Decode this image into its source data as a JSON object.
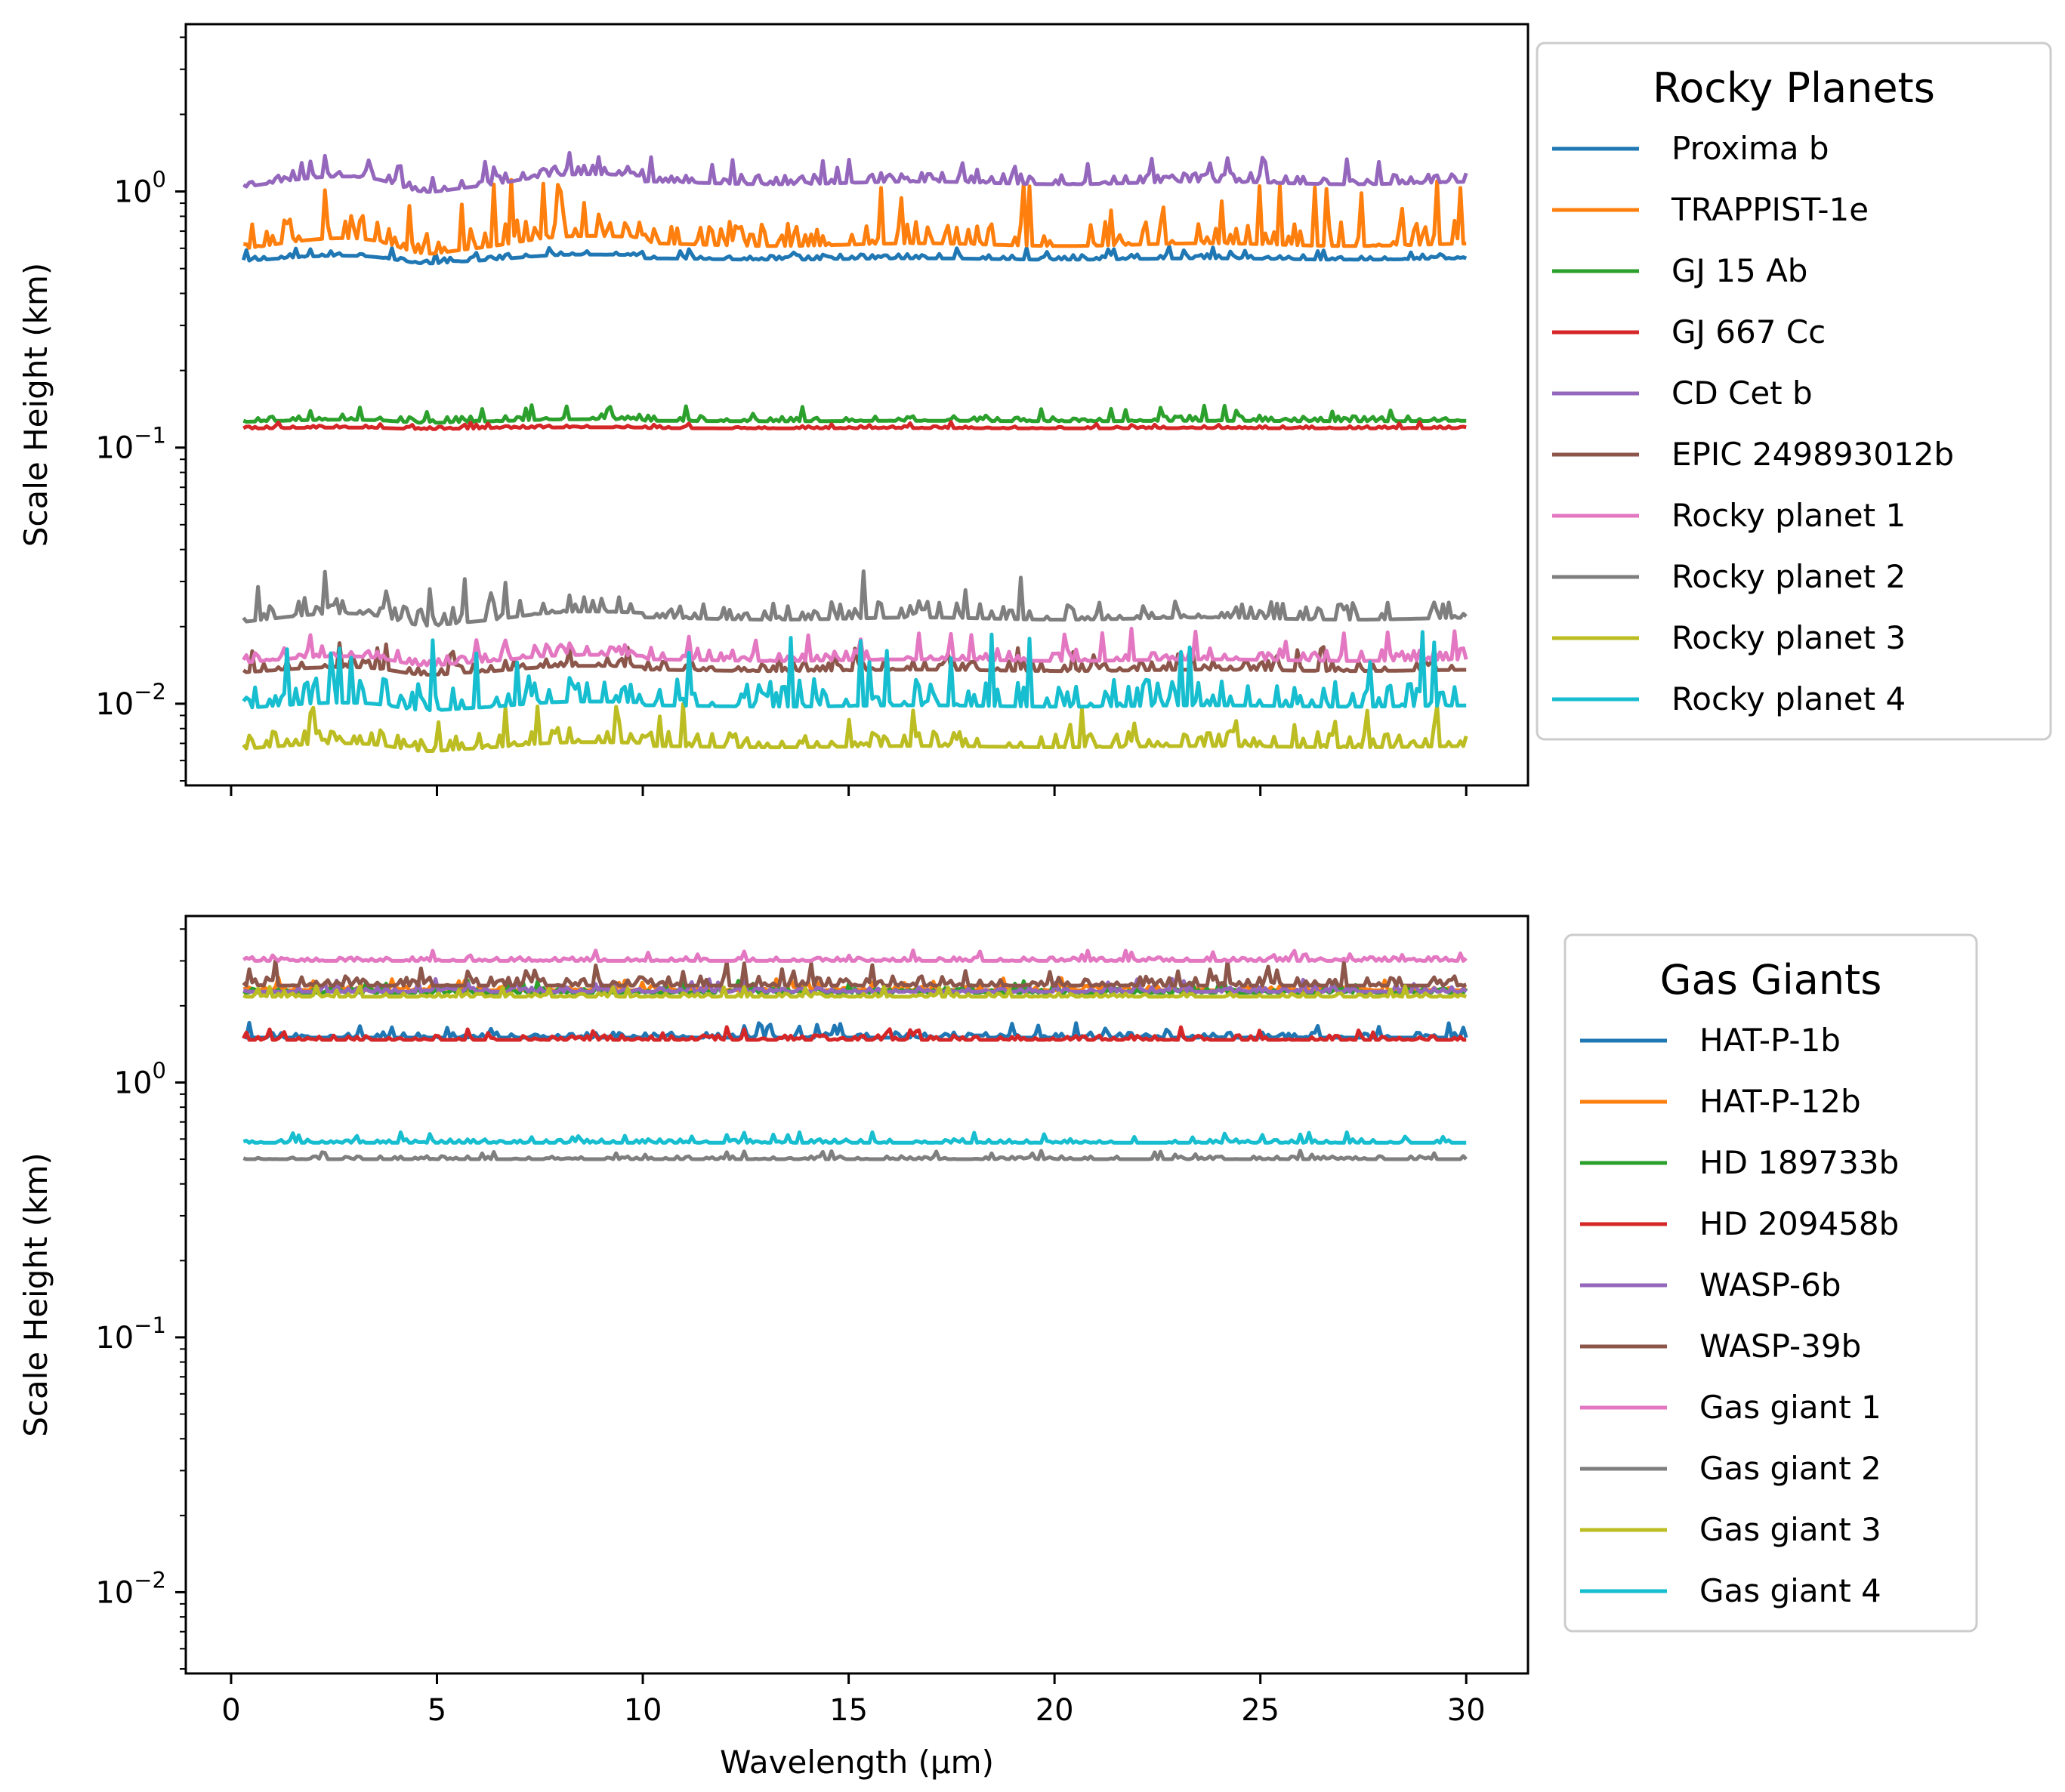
{
  "chart_data": [
    {
      "type": "line",
      "panel": "top",
      "yscale": "log",
      "ylabel": "Scale Height (km)",
      "xlabel": "",
      "xlim": [
        -1.1,
        31.5
      ],
      "ylim": [
        0.0048,
        4.5
      ],
      "xticks": [
        0,
        5,
        10,
        15,
        20,
        25,
        30
      ],
      "show_xtick_labels": false,
      "yticks": [
        {
          "value": 1,
          "base": "10",
          "exp": "0"
        },
        {
          "value": 0.1,
          "base": "10",
          "exp": "−1"
        },
        {
          "value": 0.01,
          "base": "10",
          "exp": "−2"
        }
      ],
      "legend": {
        "title": "Rocky Planets",
        "placement": "outside right"
      },
      "x_range": [
        0.3,
        30.0
      ],
      "series": [
        {
          "name": "Proxima b",
          "color": "#1f77b4",
          "baseline": 0.545,
          "noise": 0.06,
          "bump": 0.05
        },
        {
          "name": "TRAPPIST-1e",
          "color": "#ff7f0e",
          "baseline": 0.62,
          "noise": 0.3,
          "bump": 0.1
        },
        {
          "name": "GJ 15 Ab",
          "color": "#2ca02c",
          "baseline": 0.127,
          "noise": 0.07,
          "bump": 0.02
        },
        {
          "name": "GJ 667 Cc",
          "color": "#d62728",
          "baseline": 0.119,
          "noise": 0.03,
          "bump": 0.01
        },
        {
          "name": "CD Cet b",
          "color": "#9467bd",
          "baseline": 1.08,
          "noise": 0.12,
          "bump": 0.1
        },
        {
          "name": "EPIC 249893012b",
          "color": "#8c564b",
          "baseline": 0.0135,
          "noise": 0.12,
          "bump": 0.05
        },
        {
          "name": "Rocky planet 1",
          "color": "#e377c2",
          "baseline": 0.0148,
          "noise": 0.15,
          "bump": 0.06
        },
        {
          "name": "Rocky planet 2",
          "color": "#7f7f7f",
          "baseline": 0.0215,
          "noise": 0.22,
          "bump": 0.08
        },
        {
          "name": "Rocky planet 3",
          "color": "#bcbd22",
          "baseline": 0.0068,
          "noise": 0.2,
          "bump": 0.05
        },
        {
          "name": "Rocky planet 4",
          "color": "#17becf",
          "baseline": 0.0098,
          "noise": 0.35,
          "bump": 0.05
        }
      ]
    },
    {
      "type": "line",
      "panel": "bottom",
      "yscale": "log",
      "ylabel": "Scale Height (km)",
      "xlabel": "Wavelength (μm)",
      "xlim": [
        -1.1,
        31.5
      ],
      "ylim": [
        0.0048,
        4.5
      ],
      "xticks": [
        0,
        5,
        10,
        15,
        20,
        25,
        30
      ],
      "show_xtick_labels": true,
      "yticks": [
        {
          "value": 1,
          "base": "10",
          "exp": "0"
        },
        {
          "value": 0.1,
          "base": "10",
          "exp": "−1"
        },
        {
          "value": 0.01,
          "base": "10",
          "exp": "−2"
        }
      ],
      "legend": {
        "title": "Gas Giants",
        "placement": "outside right"
      },
      "x_range": [
        0.3,
        30.0
      ],
      "series": [
        {
          "name": "HAT-P-1b",
          "color": "#1f77b4",
          "baseline": 1.5,
          "noise": 0.07,
          "bump": 0
        },
        {
          "name": "HAT-P-12b",
          "color": "#ff7f0e",
          "baseline": 2.3,
          "noise": 0.06,
          "bump": 0
        },
        {
          "name": "HD 189733b",
          "color": "#2ca02c",
          "baseline": 2.25,
          "noise": 0.06,
          "bump": 0
        },
        {
          "name": "HD 209458b",
          "color": "#d62728",
          "baseline": 1.47,
          "noise": 0.06,
          "bump": 0
        },
        {
          "name": "WASP-6b",
          "color": "#9467bd",
          "baseline": 2.27,
          "noise": 0.06,
          "bump": 0
        },
        {
          "name": "WASP-39b",
          "color": "#8c564b",
          "baseline": 2.4,
          "noise": 0.12,
          "bump": 0
        },
        {
          "name": "Gas giant 1",
          "color": "#e377c2",
          "baseline": 3.0,
          "noise": 0.05,
          "bump": 0
        },
        {
          "name": "Gas giant 2",
          "color": "#7f7f7f",
          "baseline": 0.5,
          "noise": 0.04,
          "bump": 0
        },
        {
          "name": "Gas giant 3",
          "color": "#bcbd22",
          "baseline": 2.17,
          "noise": 0.05,
          "bump": 0
        },
        {
          "name": "Gas giant 4",
          "color": "#17becf",
          "baseline": 0.58,
          "noise": 0.05,
          "bump": 0
        }
      ]
    }
  ]
}
